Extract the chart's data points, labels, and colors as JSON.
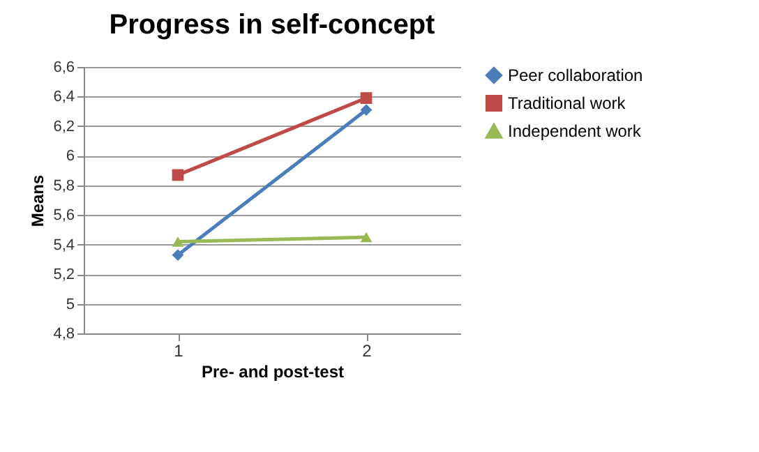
{
  "chart_data": {
    "type": "line",
    "title": "Progress in self-concept",
    "xlabel": "Pre- and post-test",
    "ylabel": "Means",
    "categories": [
      "1",
      "2"
    ],
    "series": [
      {
        "name": "Peer collaboration",
        "color": "#4a7ebb",
        "marker": "diamond",
        "values": [
          5.33,
          6.31
        ]
      },
      {
        "name": "Traditional work",
        "color": "#be4b48",
        "marker": "square",
        "values": [
          5.87,
          6.39
        ]
      },
      {
        "name": "Independent work",
        "color": "#98b954",
        "marker": "triangle",
        "values": [
          5.42,
          5.45
        ]
      }
    ],
    "ylim": [
      4.8,
      6.6
    ],
    "yticks": [
      {
        "value": 4.8,
        "label": "4,8"
      },
      5,
      {
        "value": 5.2,
        "label": "5,2"
      },
      {
        "value": 5.4,
        "label": "5,4"
      },
      {
        "value": 5.6,
        "label": "5,6"
      },
      {
        "value": 5.8,
        "label": "5,8"
      },
      6,
      {
        "value": 6.2,
        "label": "6,2"
      },
      {
        "value": 6.4,
        "label": "6,4"
      },
      {
        "value": 6.6,
        "label": "6,6"
      }
    ],
    "grid": "y",
    "legend": "right"
  }
}
